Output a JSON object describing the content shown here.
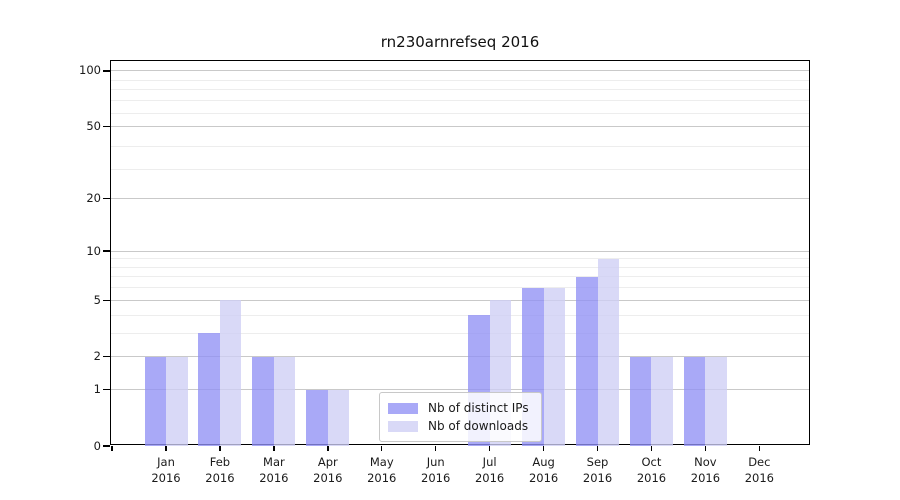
{
  "chart_data": {
    "type": "bar",
    "title": "rn230arnrefseq 2016",
    "yscale": "log1p",
    "categories": [
      "Jan",
      "Feb",
      "Mar",
      "Apr",
      "May",
      "Jun",
      "Jul",
      "Aug",
      "Sep",
      "Oct",
      "Nov",
      "Dec"
    ],
    "year": "2016",
    "series": [
      {
        "name": "Nb of distinct IPs",
        "color": "rgba(145,145,245,0.78)",
        "values": [
          2,
          3,
          2,
          1,
          0,
          0,
          4,
          6,
          7,
          2,
          2,
          0
        ]
      },
      {
        "name": "Nb of downloads",
        "color": "rgba(206,206,245,0.78)",
        "values": [
          2,
          5,
          2,
          1,
          0,
          0,
          5,
          6,
          9,
          2,
          2,
          0
        ]
      }
    ],
    "yticks": [
      0,
      1,
      2,
      5,
      10,
      20,
      50,
      100
    ],
    "minor_gridline_values": [
      3,
      4,
      6,
      7,
      8,
      9,
      29,
      39,
      59,
      69,
      79,
      89
    ],
    "ylim": [
      0,
      113
    ],
    "grid": "both",
    "legend_position": "inside-bottom-center",
    "colors": {
      "bar_distinct_ips": "#a9a9f7",
      "bar_downloads": "#d9d9f7",
      "major_grid": "#c9c9c9",
      "minor_grid": "#ededed",
      "axis": "#000000",
      "background": "#ffffff"
    }
  }
}
